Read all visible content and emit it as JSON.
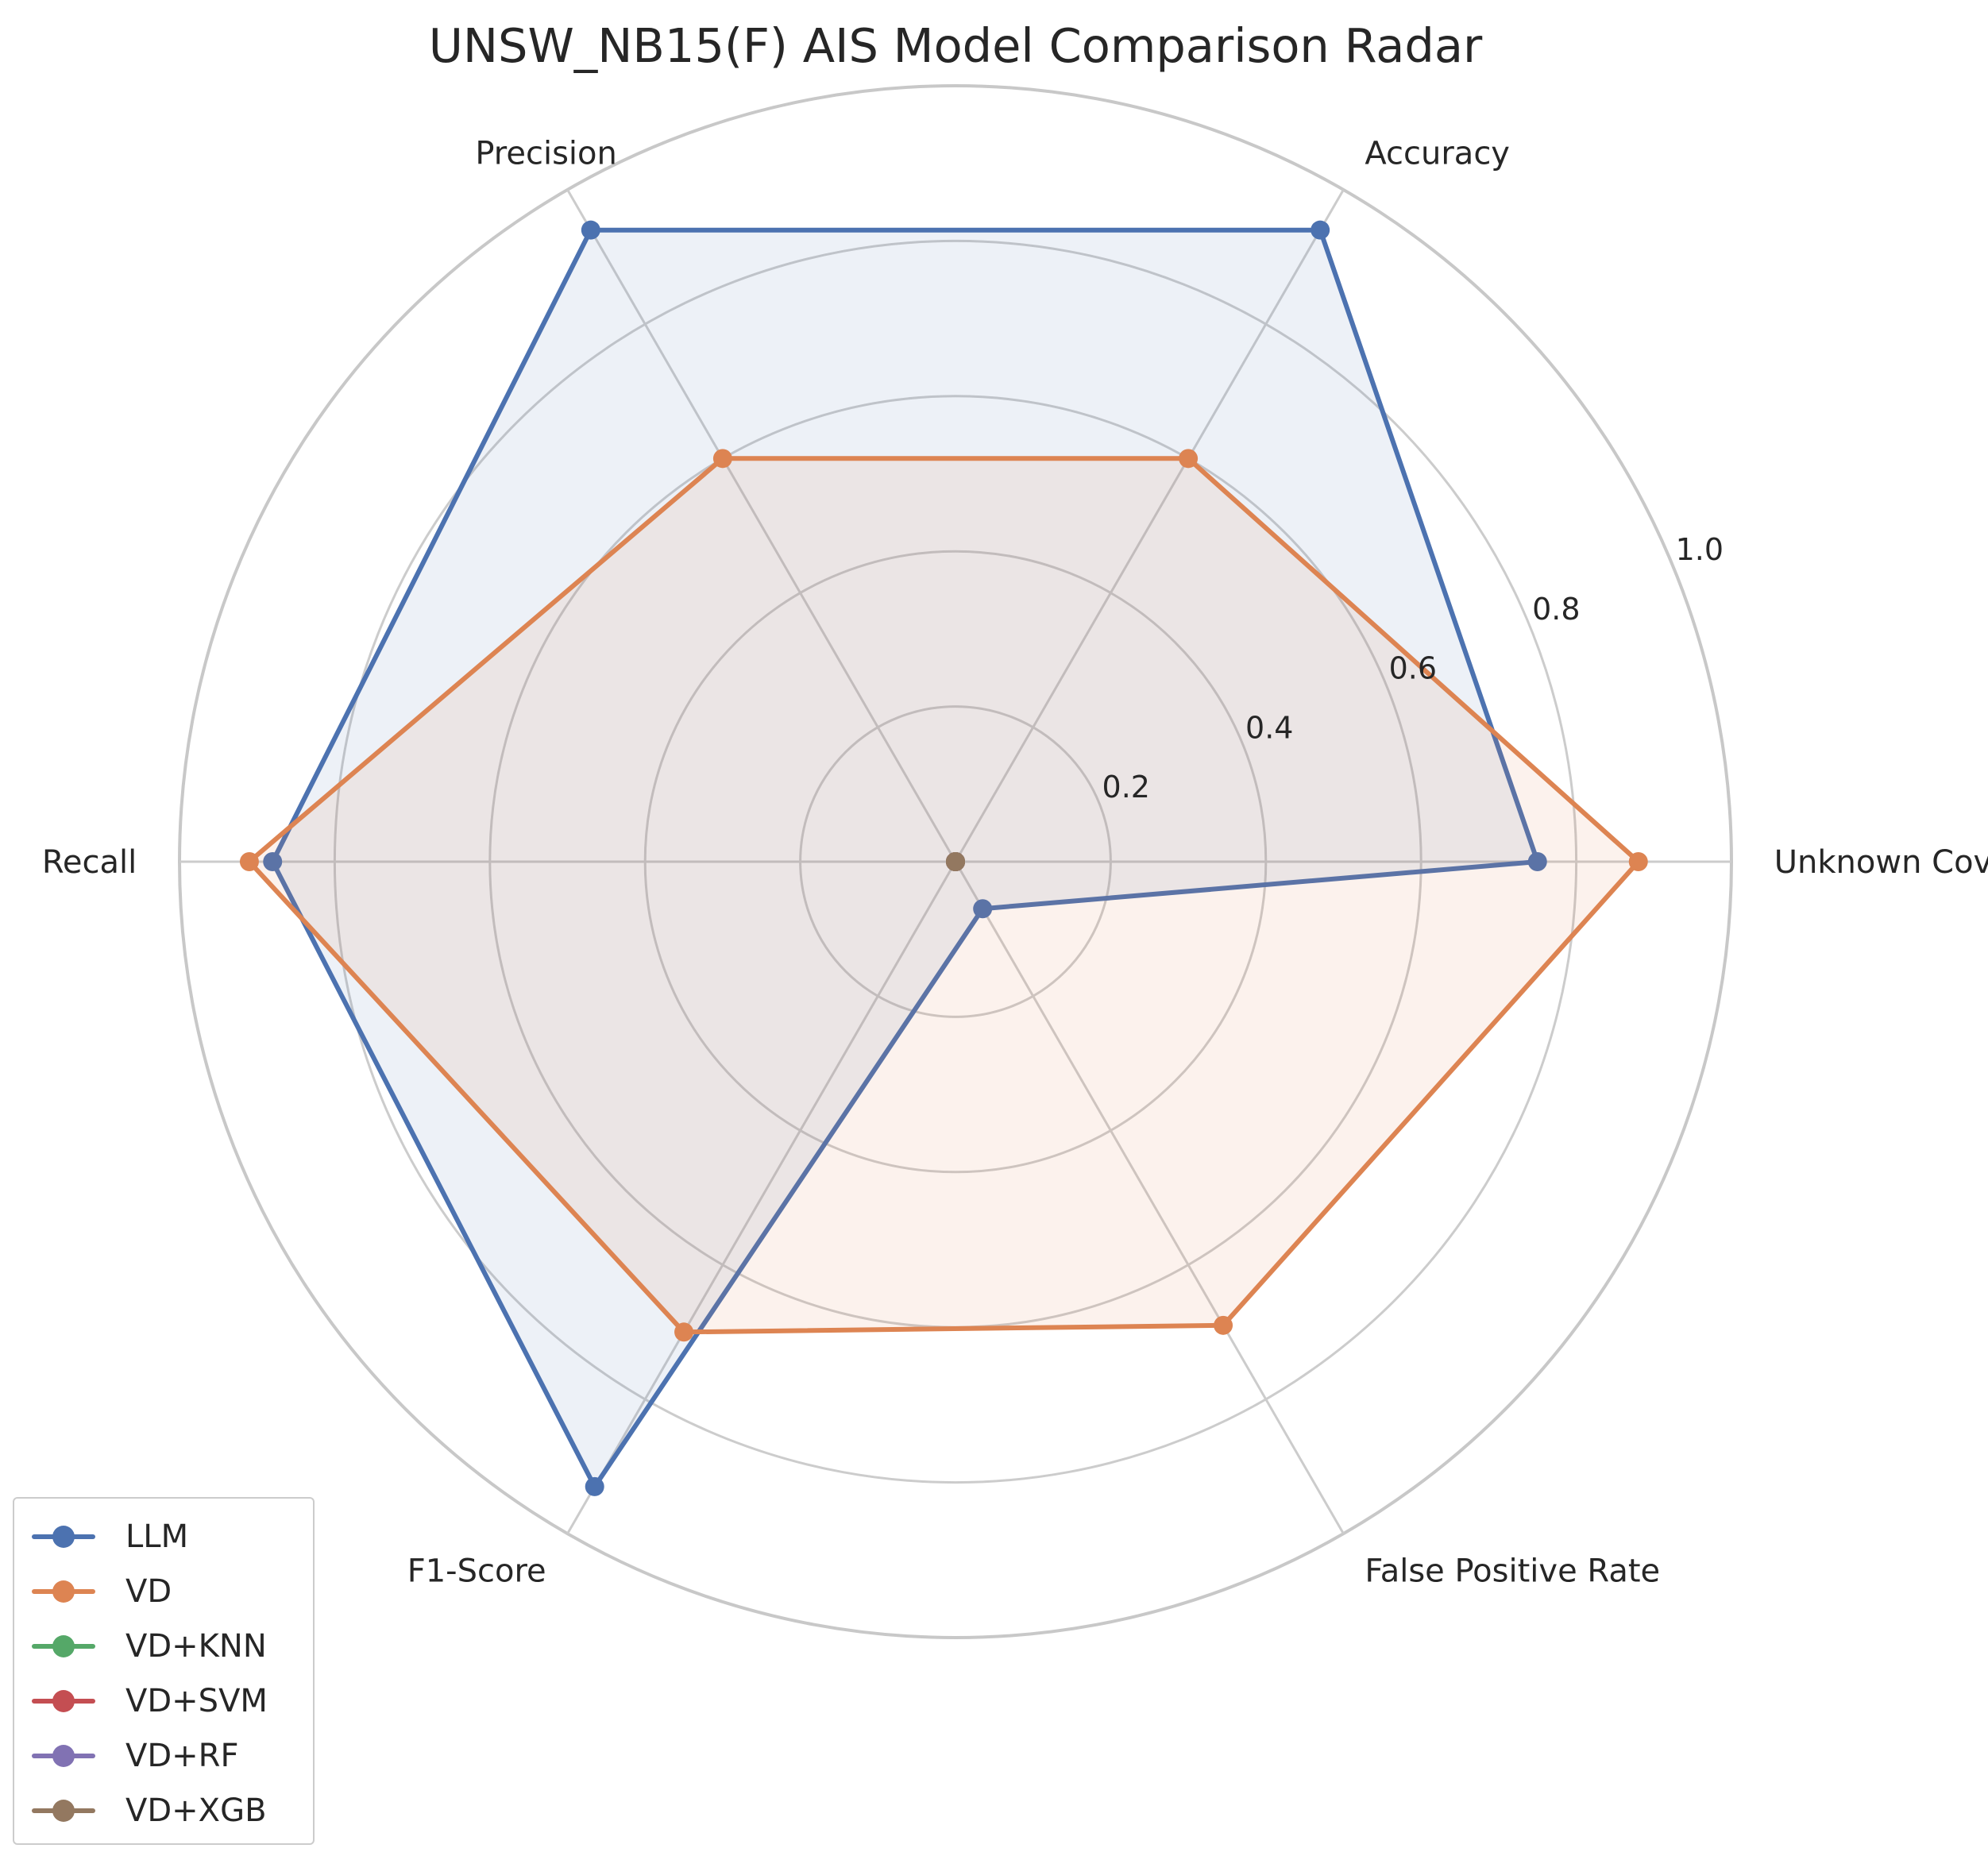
{
  "chart_data": {
    "type": "radar",
    "title": "UNSW_NB15(F) AIS Model Comparison Radar",
    "axes": [
      "Unknown Coverage",
      "Accuracy",
      "Precision",
      "Recall",
      "F1-Score",
      "False Positive Rate"
    ],
    "rlim": [
      0,
      1.0
    ],
    "rticks": [
      "0.2",
      "0.4",
      "0.6",
      "0.8",
      "1.0"
    ],
    "grid": true,
    "legend_position": "lower-left",
    "series": [
      {
        "name": "LLM",
        "color": "#4c72b0",
        "values": [
          0.75,
          0.94,
          0.94,
          0.88,
          0.93,
          0.07
        ]
      },
      {
        "name": "VD",
        "color": "#dd8452",
        "values": [
          0.88,
          0.6,
          0.6,
          0.91,
          0.7,
          0.69
        ]
      },
      {
        "name": "VD+KNN",
        "color": "#55a868",
        "values": [
          0,
          0,
          0,
          0,
          0,
          0
        ]
      },
      {
        "name": "VD+SVM",
        "color": "#c44e52",
        "values": [
          0,
          0,
          0,
          0,
          0,
          0
        ]
      },
      {
        "name": "VD+RF",
        "color": "#8172b3",
        "values": [
          0,
          0,
          0,
          0,
          0,
          0
        ]
      },
      {
        "name": "VD+XGB",
        "color": "#937860",
        "values": [
          0,
          0,
          0,
          0,
          0,
          0
        ]
      }
    ]
  }
}
